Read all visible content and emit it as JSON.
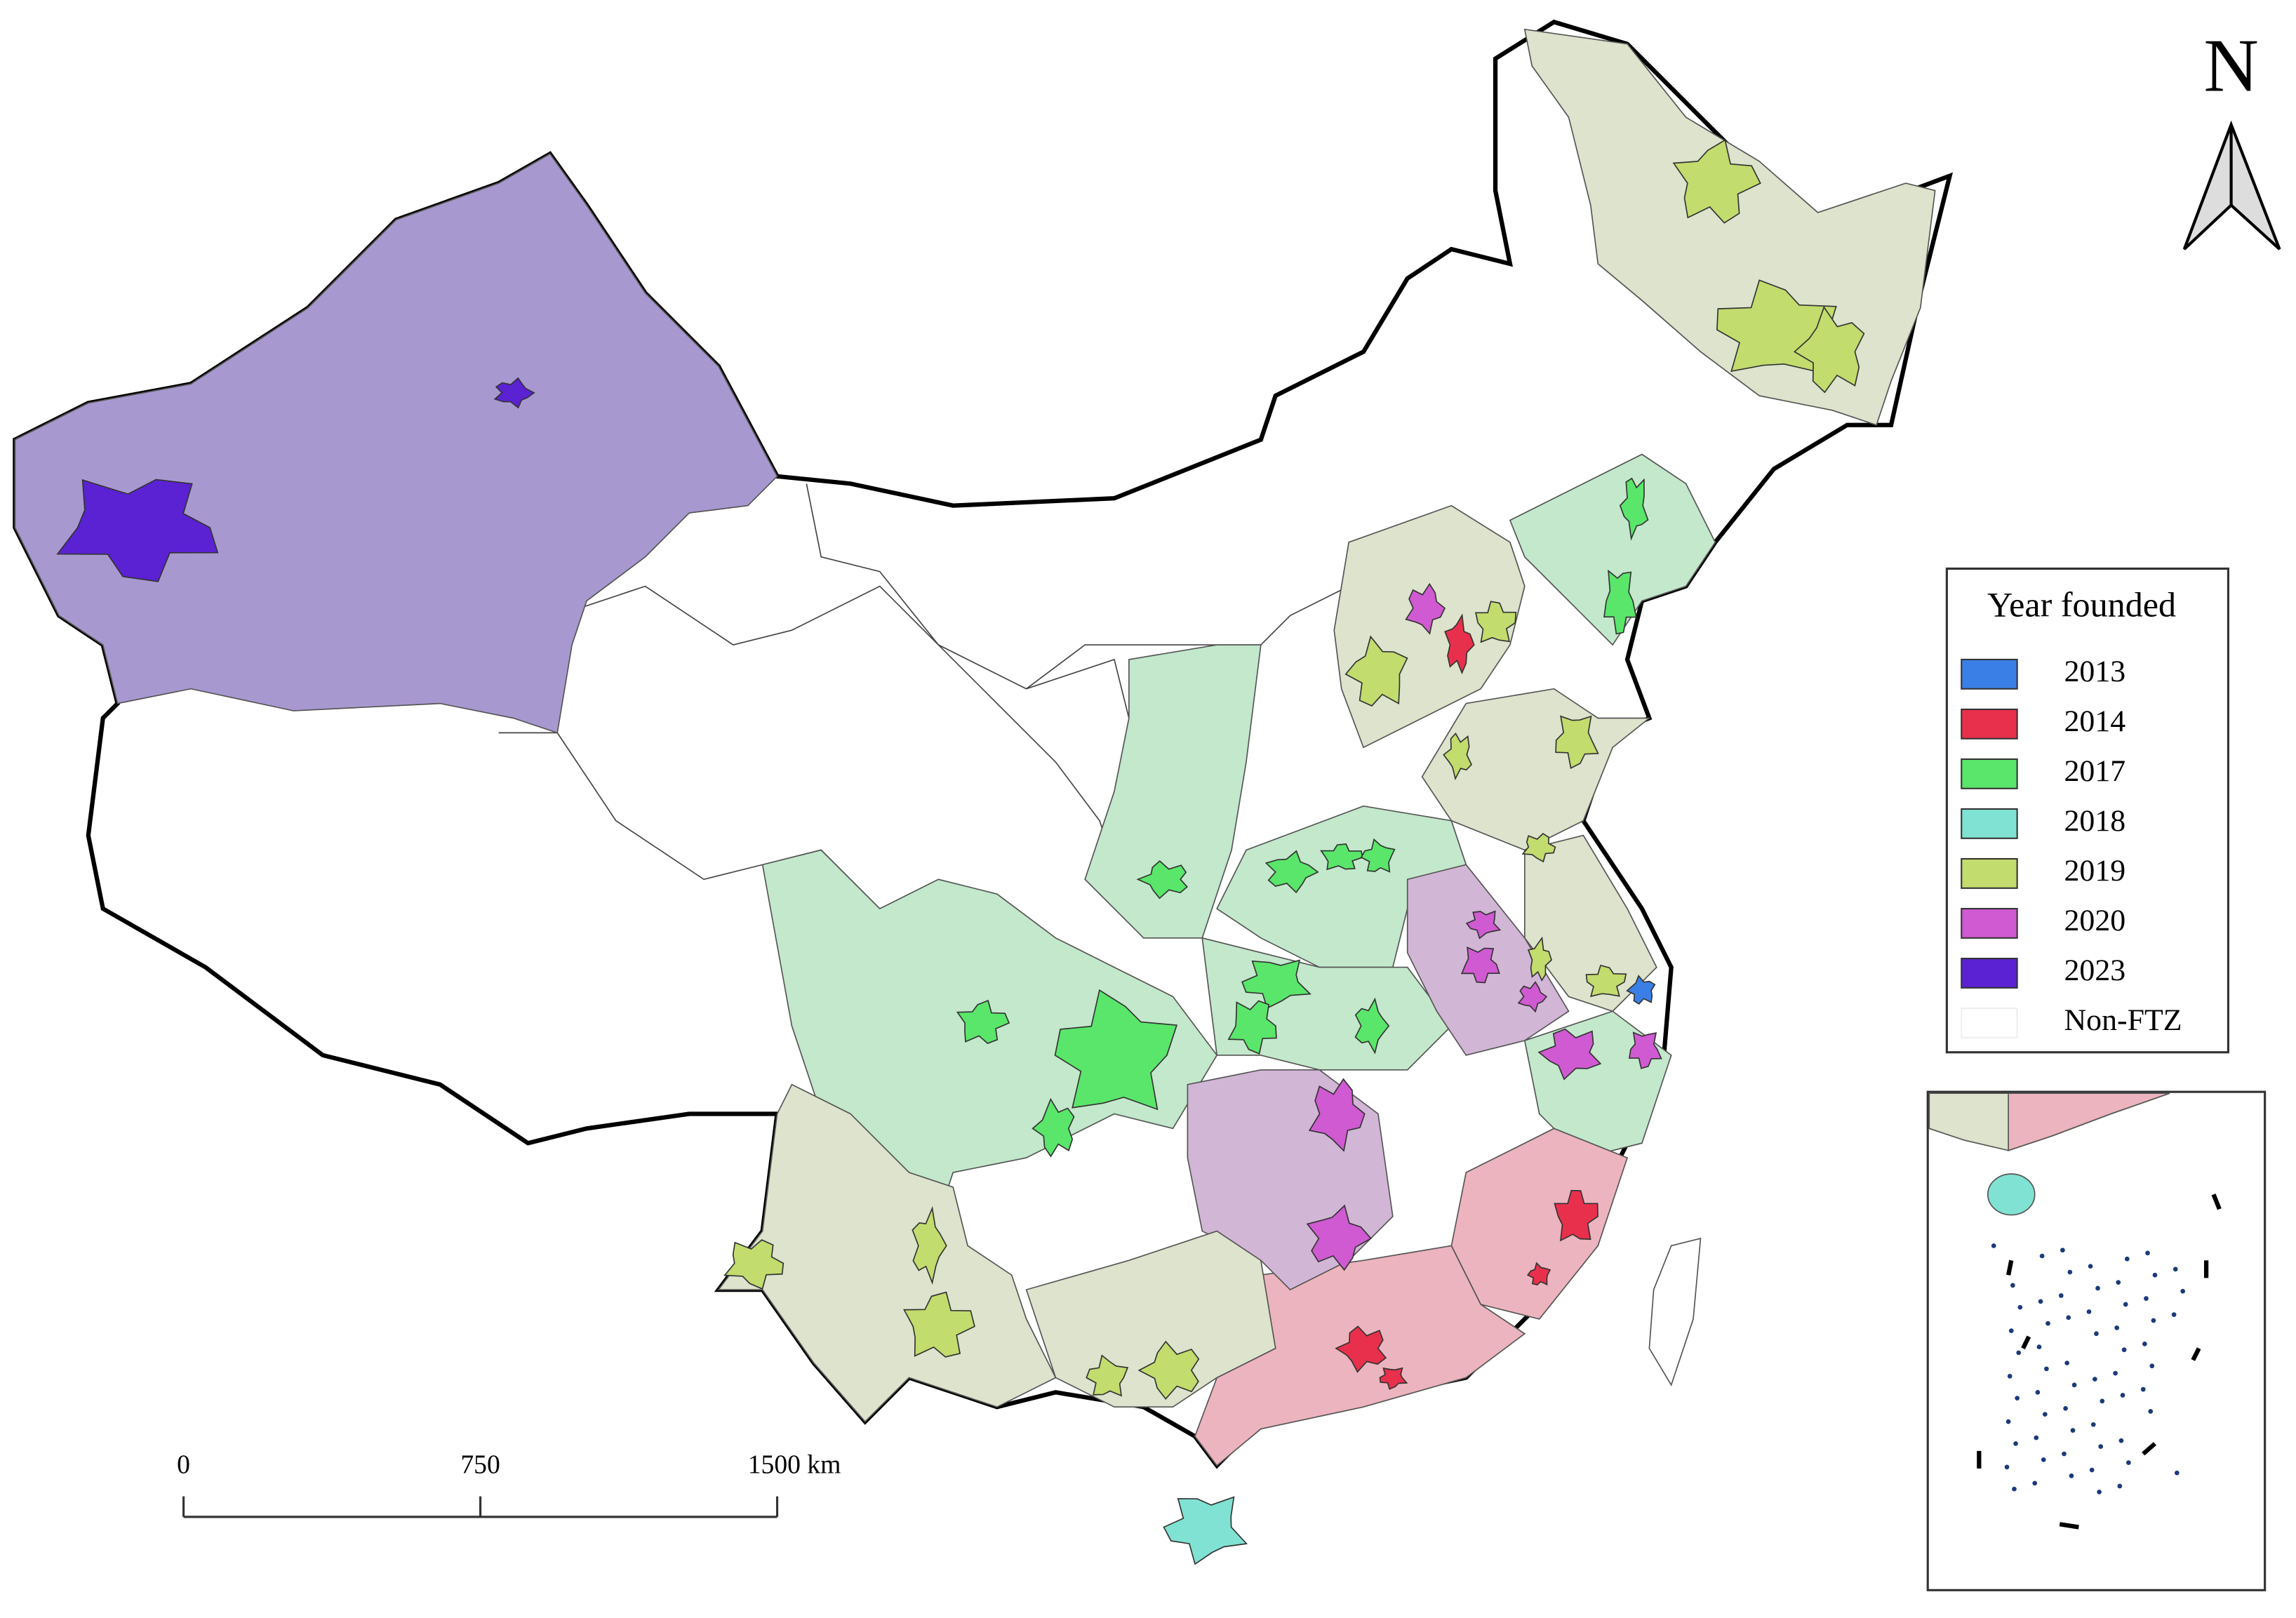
{
  "map": {
    "north_label": "N",
    "legend": {
      "title": "Year founded",
      "items": [
        {
          "label": "2013",
          "color": "#3a7fe6"
        },
        {
          "label": "2014",
          "color": "#e8304c"
        },
        {
          "label": "2017",
          "color": "#5ae66a"
        },
        {
          "label": "2018",
          "color": "#80e2d2"
        },
        {
          "label": "2019",
          "color": "#c2dc6e"
        },
        {
          "label": "2020",
          "color": "#d05ad2"
        },
        {
          "label": "2023",
          "color": "#5a22d2"
        },
        {
          "label": "Non-FTZ",
          "color": "#ffffff"
        }
      ]
    },
    "scale_bar": {
      "labels": [
        "0",
        "750",
        "1500 km"
      ]
    }
  }
}
